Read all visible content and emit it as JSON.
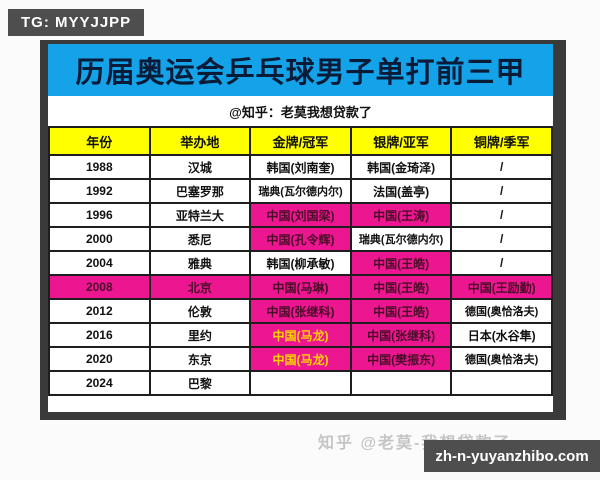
{
  "badges": {
    "tg": "TG: MYYJJPP",
    "site": "zh-n-yuyanzhibo.com"
  },
  "title": "历届奥运会乒乓球男子单打前三甲",
  "subtitle": "@知乎：老莫我想贷款了",
  "watermark": "知乎 @老莫-我想贷款了",
  "colors": {
    "title_bg": "#14A3E8",
    "title_text": "#0A1B38",
    "header_bg": "#FFFF00",
    "highlight_bg": "#EC1690",
    "highlight_text": "#4A0E28",
    "gold_text": "#FFD400",
    "badge_bg": "#4E4E4E",
    "frame": "#3A3A3A"
  },
  "chart_data": {
    "type": "table",
    "title": "历届奥运会乒乓球男子单打前三甲",
    "columns": [
      "年份",
      "举办地",
      "金牌/冠军",
      "银牌/亚军",
      "铜牌/季军"
    ],
    "rows": [
      {
        "year": "1988",
        "host": "汉城",
        "gold": {
          "text": "韩国(刘南奎)"
        },
        "silver": {
          "text": "韩国(金琦泽)"
        },
        "bronze": {
          "text": "/"
        }
      },
      {
        "year": "1992",
        "host": "巴塞罗那",
        "gold": {
          "text": "瑞典(瓦尔德内尔)"
        },
        "silver": {
          "text": "法国(盖亭)"
        },
        "bronze": {
          "text": "/"
        }
      },
      {
        "year": "1996",
        "host": "亚特兰大",
        "gold": {
          "text": "中国(刘国梁)",
          "highlight": true
        },
        "silver": {
          "text": "中国(王涛)",
          "highlight": true
        },
        "bronze": {
          "text": "/"
        }
      },
      {
        "year": "2000",
        "host": "悉尼",
        "gold": {
          "text": "中国(孔令辉)",
          "highlight": true
        },
        "silver": {
          "text": "瑞典(瓦尔德内尔)"
        },
        "bronze": {
          "text": "/"
        }
      },
      {
        "year": "2004",
        "host": "雅典",
        "gold": {
          "text": "韩国(柳承敏)"
        },
        "silver": {
          "text": "中国(王皓)",
          "highlight": true
        },
        "bronze": {
          "text": "/"
        }
      },
      {
        "year": "2008",
        "host": "北京",
        "row_highlight": true,
        "gold": {
          "text": "中国(马琳)",
          "highlight": true
        },
        "silver": {
          "text": "中国(王皓)",
          "highlight": true
        },
        "bronze": {
          "text": "中国(王励勤)",
          "highlight": true
        }
      },
      {
        "year": "2012",
        "host": "伦敦",
        "gold": {
          "text": "中国(张继科)",
          "highlight": true
        },
        "silver": {
          "text": "中国(王皓)",
          "highlight": true
        },
        "bronze": {
          "text": "德国(奥恰洛夫)"
        }
      },
      {
        "year": "2016",
        "host": "里约",
        "gold": {
          "text": "中国(马龙)",
          "highlight": true,
          "gold_text": true
        },
        "silver": {
          "text": "中国(张继科)",
          "highlight": true
        },
        "bronze": {
          "text": "日本(水谷隼)"
        }
      },
      {
        "year": "2020",
        "host": "东京",
        "gold": {
          "text": "中国(马龙)",
          "highlight": true,
          "gold_text": true
        },
        "silver": {
          "text": "中国(樊振东)",
          "highlight": true
        },
        "bronze": {
          "text": "德国(奥恰洛夫)"
        }
      },
      {
        "year": "2024",
        "host": "巴黎",
        "gold": {
          "text": ""
        },
        "silver": {
          "text": ""
        },
        "bronze": {
          "text": ""
        }
      }
    ]
  }
}
